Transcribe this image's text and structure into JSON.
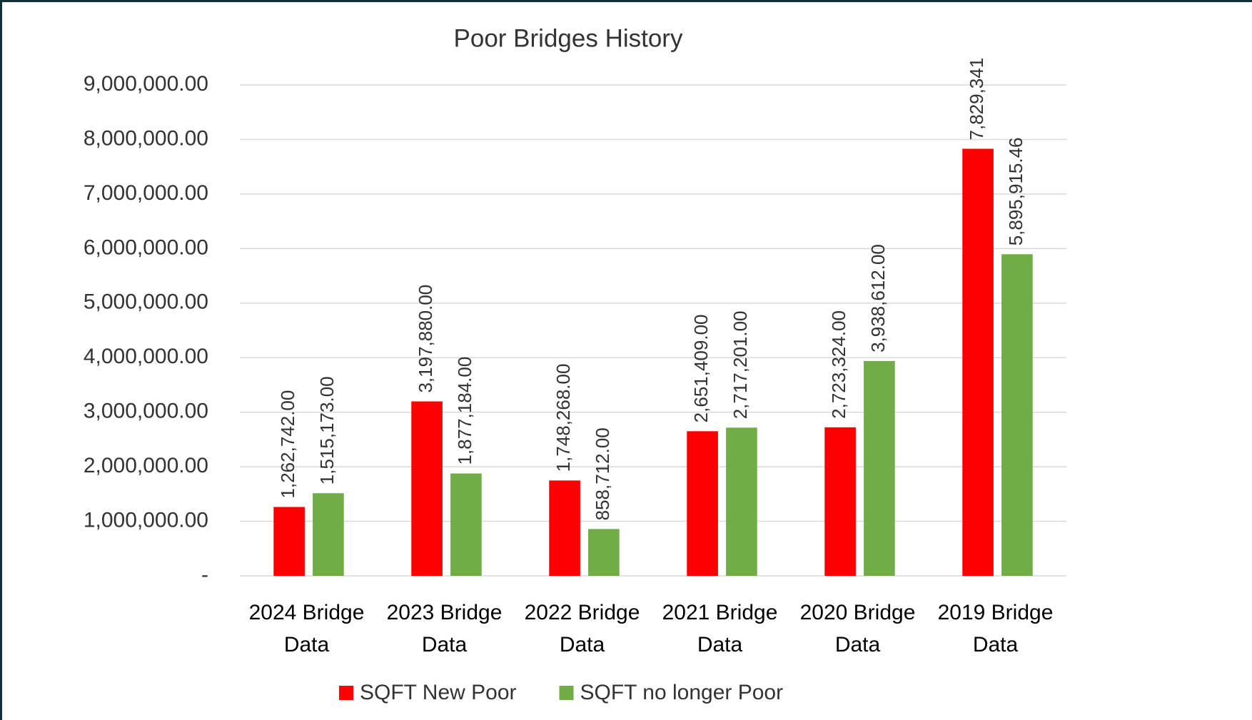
{
  "chart_data": {
    "type": "bar",
    "title": "Poor Bridges History",
    "categories": [
      "2024 Bridge Data",
      "2023 Bridge Data",
      "2022 Bridge Data",
      "2021 Bridge Data",
      "2020 Bridge Data",
      "2019 Bridge Data"
    ],
    "series": [
      {
        "name": "SQFT New Poor",
        "color": "#ff0000",
        "values": [
          1262742,
          3197880,
          1748268,
          2651409,
          2723324,
          7829341
        ],
        "value_labels": [
          "1,262,742.00",
          "3,197,880.00",
          "1,748,268.00",
          "2,651,409.00",
          "2,723,324.00",
          "7,829,341"
        ]
      },
      {
        "name": "SQFT no longer Poor",
        "color": "#70ad47",
        "values": [
          1515173,
          1877184,
          858712,
          2717201,
          3938612,
          5895915.46
        ],
        "value_labels": [
          "1,515,173.00",
          "1,877,184.00",
          "858,712.00",
          "2,717,201.00",
          "3,938,612.00",
          "5,895,915.46"
        ]
      }
    ],
    "ylim": [
      0,
      9000000
    ],
    "yticks": [
      {
        "value": 0,
        "label": "-"
      },
      {
        "value": 1000000,
        "label": "1,000,000.00"
      },
      {
        "value": 2000000,
        "label": "2,000,000.00"
      },
      {
        "value": 3000000,
        "label": "3,000,000.00"
      },
      {
        "value": 4000000,
        "label": "4,000,000.00"
      },
      {
        "value": 5000000,
        "label": "5,000,000.00"
      },
      {
        "value": 6000000,
        "label": "6,000,000.00"
      },
      {
        "value": 7000000,
        "label": "7,000,000.00"
      },
      {
        "value": 8000000,
        "label": "8,000,000.00"
      },
      {
        "value": 9000000,
        "label": "9,000,000.00"
      }
    ],
    "grid": true,
    "legend": "bottom"
  }
}
